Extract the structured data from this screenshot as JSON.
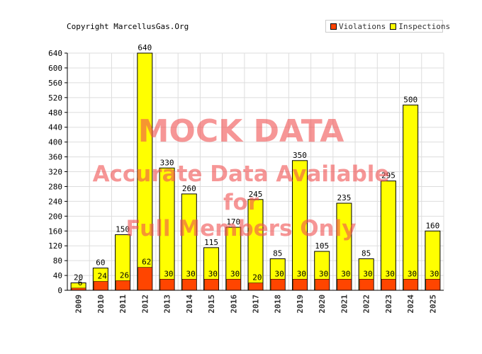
{
  "copyright": "Copyright MarcellusGas.Org",
  "watermark": {
    "title": "MOCK DATA",
    "line1": "Accurate Data Available",
    "line2": "for",
    "line3": "Full Members Only"
  },
  "colors": {
    "violations": "#ff4500",
    "inspections": "#ffff00",
    "grid": "#dddddd",
    "axis": "#000000"
  },
  "chart_data": {
    "type": "bar",
    "categories": [
      "2009",
      "2010",
      "2011",
      "2012",
      "2013",
      "2014",
      "2015",
      "2016",
      "2017",
      "2018",
      "2019",
      "2020",
      "2021",
      "2022",
      "2023",
      "2024",
      "2025"
    ],
    "series": [
      {
        "name": "Violations",
        "values": [
          6,
          24,
          26,
          62,
          30,
          30,
          30,
          30,
          20,
          30,
          30,
          30,
          30,
          30,
          30,
          30,
          30
        ]
      },
      {
        "name": "Inspections",
        "values": [
          20,
          60,
          150,
          640,
          330,
          260,
          115,
          170,
          245,
          85,
          350,
          105,
          235,
          85,
          295,
          500,
          160
        ]
      }
    ],
    "ylim": [
      0,
      640
    ],
    "yticks": [
      0,
      40,
      80,
      120,
      160,
      200,
      240,
      280,
      320,
      360,
      400,
      440,
      480,
      520,
      560,
      600,
      640
    ],
    "grid": true,
    "legend": "top-right",
    "legend_entries": [
      "Violations",
      "Inspections"
    ]
  }
}
